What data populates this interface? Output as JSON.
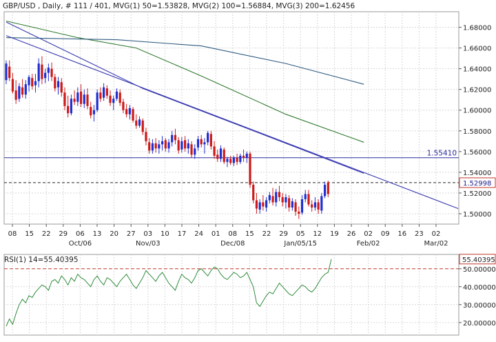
{
  "chart_data": [
    {
      "type": "candlestick",
      "header": "GBP/USD , Daily, # 111 / 401, MVG(1) 50=1.53828, MVG(2) 100=1.56884, MVG(3) 200=1.62456",
      "symbol": "GBP/USD",
      "timeframe": "Daily",
      "ylim": [
        1.49,
        1.695
      ],
      "y_ticks": [
        1.5,
        1.52,
        1.54,
        1.56,
        1.58,
        1.6,
        1.62,
        1.64,
        1.66,
        1.68
      ],
      "y_tick_labels": [
        "1.50000",
        "1.52000",
        "1.54000",
        "1.56000",
        "1.58000",
        "1.60000",
        "1.62000",
        "1.64000",
        "1.66000",
        "1.68000"
      ],
      "x_week_ticks": [
        "08",
        "15",
        "22",
        "29",
        "06",
        "13",
        "20",
        "27",
        "03",
        "10",
        "17",
        "24",
        "01",
        "08",
        "15",
        "22",
        "29",
        "05",
        "12",
        "19",
        "26",
        "02",
        "09",
        "16",
        "23",
        "02"
      ],
      "x_month_labels": [
        {
          "label": "Oct/06",
          "tick_index": 4
        },
        {
          "label": "Nov/03",
          "tick_index": 8
        },
        {
          "label": "Dec/08",
          "tick_index": 13
        },
        {
          "label": "Jan/05/15",
          "tick_index": 17
        },
        {
          "label": "Feb/02",
          "tick_index": 21
        },
        {
          "label": "Mar/02",
          "tick_index": 25
        }
      ],
      "grid": true,
      "levels": [
        {
          "value": 1.5541,
          "label": "1.55410",
          "style": "solid",
          "color": "#2a2aa0"
        },
        {
          "value": 1.52998,
          "label": "1.52998",
          "style": "dashed",
          "color": "#222222"
        }
      ],
      "candles": [
        {
          "o": 1.629,
          "h": 1.648,
          "l": 1.625,
          "c": 1.645
        },
        {
          "o": 1.642,
          "h": 1.648,
          "l": 1.628,
          "c": 1.631
        },
        {
          "o": 1.63,
          "h": 1.636,
          "l": 1.616,
          "c": 1.618
        },
        {
          "o": 1.619,
          "h": 1.629,
          "l": 1.606,
          "c": 1.61
        },
        {
          "o": 1.611,
          "h": 1.626,
          "l": 1.608,
          "c": 1.623
        },
        {
          "o": 1.622,
          "h": 1.63,
          "l": 1.612,
          "c": 1.615
        },
        {
          "o": 1.615,
          "h": 1.629,
          "l": 1.611,
          "c": 1.625
        },
        {
          "o": 1.624,
          "h": 1.634,
          "l": 1.618,
          "c": 1.632
        },
        {
          "o": 1.631,
          "h": 1.635,
          "l": 1.62,
          "c": 1.623
        },
        {
          "o": 1.624,
          "h": 1.635,
          "l": 1.617,
          "c": 1.628
        },
        {
          "o": 1.628,
          "h": 1.65,
          "l": 1.622,
          "c": 1.645
        },
        {
          "o": 1.644,
          "h": 1.652,
          "l": 1.625,
          "c": 1.63
        },
        {
          "o": 1.631,
          "h": 1.64,
          "l": 1.626,
          "c": 1.636
        },
        {
          "o": 1.636,
          "h": 1.645,
          "l": 1.628,
          "c": 1.641
        },
        {
          "o": 1.64,
          "h": 1.646,
          "l": 1.628,
          "c": 1.632
        },
        {
          "o": 1.632,
          "h": 1.635,
          "l": 1.618,
          "c": 1.621
        },
        {
          "o": 1.622,
          "h": 1.632,
          "l": 1.615,
          "c": 1.628
        },
        {
          "o": 1.627,
          "h": 1.631,
          "l": 1.613,
          "c": 1.617
        },
        {
          "o": 1.617,
          "h": 1.622,
          "l": 1.6,
          "c": 1.604
        },
        {
          "o": 1.604,
          "h": 1.614,
          "l": 1.593,
          "c": 1.597
        },
        {
          "o": 1.597,
          "h": 1.615,
          "l": 1.595,
          "c": 1.611
        },
        {
          "o": 1.611,
          "h": 1.619,
          "l": 1.605,
          "c": 1.608
        },
        {
          "o": 1.608,
          "h": 1.622,
          "l": 1.604,
          "c": 1.617
        },
        {
          "o": 1.618,
          "h": 1.625,
          "l": 1.603,
          "c": 1.606
        },
        {
          "o": 1.606,
          "h": 1.62,
          "l": 1.602,
          "c": 1.615
        },
        {
          "o": 1.615,
          "h": 1.621,
          "l": 1.601,
          "c": 1.604
        },
        {
          "o": 1.603,
          "h": 1.608,
          "l": 1.592,
          "c": 1.595
        },
        {
          "o": 1.596,
          "h": 1.605,
          "l": 1.589,
          "c": 1.6
        },
        {
          "o": 1.6,
          "h": 1.62,
          "l": 1.598,
          "c": 1.617
        },
        {
          "o": 1.617,
          "h": 1.622,
          "l": 1.608,
          "c": 1.611
        },
        {
          "o": 1.612,
          "h": 1.626,
          "l": 1.609,
          "c": 1.622
        },
        {
          "o": 1.621,
          "h": 1.624,
          "l": 1.611,
          "c": 1.614
        },
        {
          "o": 1.614,
          "h": 1.619,
          "l": 1.604,
          "c": 1.607
        },
        {
          "o": 1.607,
          "h": 1.614,
          "l": 1.6,
          "c": 1.611
        },
        {
          "o": 1.611,
          "h": 1.621,
          "l": 1.609,
          "c": 1.618
        },
        {
          "o": 1.617,
          "h": 1.62,
          "l": 1.604,
          "c": 1.607
        },
        {
          "o": 1.608,
          "h": 1.611,
          "l": 1.597,
          "c": 1.6
        },
        {
          "o": 1.601,
          "h": 1.606,
          "l": 1.593,
          "c": 1.596
        },
        {
          "o": 1.596,
          "h": 1.605,
          "l": 1.591,
          "c": 1.602
        },
        {
          "o": 1.601,
          "h": 1.603,
          "l": 1.588,
          "c": 1.59
        },
        {
          "o": 1.59,
          "h": 1.596,
          "l": 1.582,
          "c": 1.585
        },
        {
          "o": 1.585,
          "h": 1.594,
          "l": 1.583,
          "c": 1.591
        },
        {
          "o": 1.59,
          "h": 1.592,
          "l": 1.576,
          "c": 1.579
        },
        {
          "o": 1.579,
          "h": 1.583,
          "l": 1.566,
          "c": 1.57
        },
        {
          "o": 1.569,
          "h": 1.573,
          "l": 1.558,
          "c": 1.561
        },
        {
          "o": 1.561,
          "h": 1.572,
          "l": 1.558,
          "c": 1.568
        },
        {
          "o": 1.568,
          "h": 1.573,
          "l": 1.559,
          "c": 1.563
        },
        {
          "o": 1.563,
          "h": 1.571,
          "l": 1.558,
          "c": 1.567
        },
        {
          "o": 1.567,
          "h": 1.575,
          "l": 1.561,
          "c": 1.57
        },
        {
          "o": 1.571,
          "h": 1.573,
          "l": 1.56,
          "c": 1.563
        },
        {
          "o": 1.563,
          "h": 1.572,
          "l": 1.559,
          "c": 1.569
        },
        {
          "o": 1.569,
          "h": 1.58,
          "l": 1.565,
          "c": 1.576
        },
        {
          "o": 1.576,
          "h": 1.582,
          "l": 1.567,
          "c": 1.571
        },
        {
          "o": 1.571,
          "h": 1.574,
          "l": 1.558,
          "c": 1.561
        },
        {
          "o": 1.562,
          "h": 1.574,
          "l": 1.559,
          "c": 1.57
        },
        {
          "o": 1.571,
          "h": 1.575,
          "l": 1.56,
          "c": 1.563
        },
        {
          "o": 1.563,
          "h": 1.572,
          "l": 1.558,
          "c": 1.568
        },
        {
          "o": 1.567,
          "h": 1.57,
          "l": 1.554,
          "c": 1.557
        },
        {
          "o": 1.557,
          "h": 1.567,
          "l": 1.553,
          "c": 1.563
        },
        {
          "o": 1.564,
          "h": 1.575,
          "l": 1.561,
          "c": 1.572
        },
        {
          "o": 1.572,
          "h": 1.576,
          "l": 1.564,
          "c": 1.567
        },
        {
          "o": 1.567,
          "h": 1.573,
          "l": 1.558,
          "c": 1.569
        },
        {
          "o": 1.569,
          "h": 1.58,
          "l": 1.566,
          "c": 1.578
        },
        {
          "o": 1.577,
          "h": 1.58,
          "l": 1.562,
          "c": 1.565
        },
        {
          "o": 1.565,
          "h": 1.57,
          "l": 1.553,
          "c": 1.556
        },
        {
          "o": 1.557,
          "h": 1.562,
          "l": 1.55,
          "c": 1.553
        },
        {
          "o": 1.553,
          "h": 1.566,
          "l": 1.55,
          "c": 1.563
        },
        {
          "o": 1.562,
          "h": 1.564,
          "l": 1.548,
          "c": 1.55
        },
        {
          "o": 1.55,
          "h": 1.555,
          "l": 1.545,
          "c": 1.553
        },
        {
          "o": 1.553,
          "h": 1.556,
          "l": 1.547,
          "c": 1.549
        },
        {
          "o": 1.549,
          "h": 1.556,
          "l": 1.546,
          "c": 1.554
        },
        {
          "o": 1.554,
          "h": 1.558,
          "l": 1.547,
          "c": 1.55
        },
        {
          "o": 1.55,
          "h": 1.558,
          "l": 1.548,
          "c": 1.556
        },
        {
          "o": 1.556,
          "h": 1.562,
          "l": 1.55,
          "c": 1.554
        },
        {
          "o": 1.554,
          "h": 1.56,
          "l": 1.549,
          "c": 1.558
        },
        {
          "o": 1.558,
          "h": 1.56,
          "l": 1.525,
          "c": 1.528
        },
        {
          "o": 1.528,
          "h": 1.531,
          "l": 1.51,
          "c": 1.513
        },
        {
          "o": 1.513,
          "h": 1.52,
          "l": 1.5,
          "c": 1.505
        },
        {
          "o": 1.504,
          "h": 1.514,
          "l": 1.5,
          "c": 1.511
        },
        {
          "o": 1.511,
          "h": 1.518,
          "l": 1.503,
          "c": 1.507
        },
        {
          "o": 1.506,
          "h": 1.516,
          "l": 1.502,
          "c": 1.513
        },
        {
          "o": 1.513,
          "h": 1.521,
          "l": 1.51,
          "c": 1.518
        },
        {
          "o": 1.517,
          "h": 1.525,
          "l": 1.508,
          "c": 1.511
        },
        {
          "o": 1.511,
          "h": 1.524,
          "l": 1.507,
          "c": 1.521
        },
        {
          "o": 1.521,
          "h": 1.527,
          "l": 1.512,
          "c": 1.516
        },
        {
          "o": 1.516,
          "h": 1.52,
          "l": 1.507,
          "c": 1.511
        },
        {
          "o": 1.511,
          "h": 1.519,
          "l": 1.505,
          "c": 1.516
        },
        {
          "o": 1.515,
          "h": 1.518,
          "l": 1.502,
          "c": 1.506
        },
        {
          "o": 1.506,
          "h": 1.515,
          "l": 1.503,
          "c": 1.512
        },
        {
          "o": 1.511,
          "h": 1.514,
          "l": 1.498,
          "c": 1.502
        },
        {
          "o": 1.502,
          "h": 1.507,
          "l": 1.495,
          "c": 1.5
        },
        {
          "o": 1.501,
          "h": 1.518,
          "l": 1.499,
          "c": 1.514
        },
        {
          "o": 1.514,
          "h": 1.523,
          "l": 1.511,
          "c": 1.519
        },
        {
          "o": 1.519,
          "h": 1.523,
          "l": 1.507,
          "c": 1.509
        },
        {
          "o": 1.509,
          "h": 1.513,
          "l": 1.502,
          "c": 1.506
        },
        {
          "o": 1.506,
          "h": 1.516,
          "l": 1.503,
          "c": 1.511
        },
        {
          "o": 1.511,
          "h": 1.514,
          "l": 1.5,
          "c": 1.504
        },
        {
          "o": 1.503,
          "h": 1.52,
          "l": 1.5,
          "c": 1.517
        },
        {
          "o": 1.517,
          "h": 1.531,
          "l": 1.515,
          "c": 1.528
        },
        {
          "o": 1.53,
          "h": 1.532,
          "l": 1.516,
          "c": 1.519
        }
      ],
      "moving_averages": [
        {
          "label": "MVG(1) 50",
          "value": 1.53828,
          "color": "#3a3ab0",
          "points": [
            [
              0,
              1.685
            ],
            [
              42,
              1.621
            ],
            [
              86,
              1.568
            ],
            [
              110,
              1.539
            ]
          ]
        },
        {
          "label": "MVG(2) 100",
          "value": 1.56884,
          "color": "#2f7a2f",
          "points": [
            [
              0,
              1.686
            ],
            [
              22,
              1.67
            ],
            [
              40,
              1.66
            ],
            [
              60,
              1.633
            ],
            [
              86,
              1.596
            ],
            [
              110,
              1.569
            ]
          ]
        },
        {
          "label": "MVG(3) 200",
          "value": 1.62456,
          "color": "#2f5a80",
          "points": [
            [
              0,
              1.67
            ],
            [
              34,
              1.668
            ],
            [
              60,
              1.662
            ],
            [
              86,
              1.645
            ],
            [
              110,
              1.625
            ]
          ]
        }
      ],
      "trendlines": [
        {
          "color": "#3a3ab0",
          "points": [
            [
              0,
              1.672
            ],
            [
              139,
              1.505
            ]
          ]
        }
      ]
    },
    {
      "type": "line",
      "title": "RSI(1) 14=55.40395",
      "value_label": "55.40395",
      "ylim": [
        13,
        58
      ],
      "y_ticks": [
        20,
        30,
        40,
        50
      ],
      "y_tick_labels": [
        "20.00000",
        "30.00000",
        "40.00000",
        "50.00000"
      ],
      "reference_line": 50,
      "series": [
        {
          "values": [
            18,
            22,
            19,
            25,
            30,
            33,
            31,
            35,
            34,
            37,
            39,
            41,
            40,
            38,
            43,
            44,
            42,
            46,
            44,
            41,
            45,
            43,
            47,
            45,
            44,
            42,
            40,
            44,
            46,
            43,
            41,
            45,
            44,
            42,
            40,
            43,
            45,
            47,
            44,
            41,
            39,
            42,
            45,
            49,
            47,
            45,
            43,
            46,
            48,
            45,
            42,
            40,
            38,
            43,
            47,
            45,
            44,
            42,
            45,
            49,
            50,
            48,
            46,
            49,
            51,
            50,
            47,
            45,
            44,
            46,
            48,
            47,
            45,
            46,
            48,
            44,
            40,
            31,
            29,
            32,
            35,
            37,
            36,
            39,
            42,
            40,
            38,
            36,
            35,
            37,
            39,
            41,
            40,
            38,
            37,
            39,
            42,
            45,
            47,
            48,
            55.4
          ]
        }
      ]
    }
  ]
}
